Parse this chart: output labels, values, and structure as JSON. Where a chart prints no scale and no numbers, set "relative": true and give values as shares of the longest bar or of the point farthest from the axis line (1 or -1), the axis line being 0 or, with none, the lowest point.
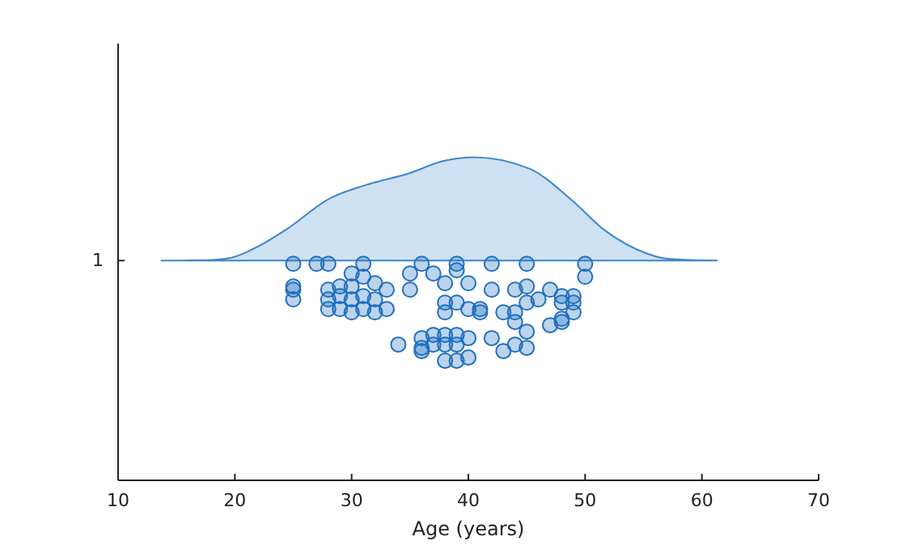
{
  "chart_data": {
    "type": "scatter",
    "xlabel": "Age (years)",
    "xlim": [
      10,
      70
    ],
    "xticks": [
      10,
      20,
      30,
      40,
      50,
      60,
      70
    ],
    "relative": true,
    "annotations": [
      "1"
    ],
    "series": [
      {
        "type": "area",
        "color": "#3c86cc",
        "x": [
          13.7,
          15.1,
          17.4,
          19.7,
          22.1,
          24.4,
          28.1,
          31.3,
          35.0,
          37.8,
          40.5,
          45.2,
          48.8,
          51.6,
          54.4,
          57.2,
          61.3
        ],
        "values": [
          0.68,
          0.68,
          0.681,
          0.689,
          0.726,
          0.776,
          0.872,
          0.915,
          0.951,
          0.988,
          1.0,
          0.965,
          0.869,
          0.776,
          0.715,
          0.685,
          0.68
        ]
      },
      {
        "color": "#1f6fc0",
        "marker": "circle",
        "x": [
          25,
          25,
          25,
          25,
          27,
          28,
          28,
          28,
          28,
          29,
          29,
          29,
          30,
          30,
          30,
          30,
          31,
          31,
          31,
          31,
          32,
          32,
          32,
          33,
          33,
          34,
          35,
          35,
          36,
          36,
          36,
          36,
          37,
          37,
          37,
          38,
          38,
          38,
          38,
          38,
          38,
          39,
          39,
          39,
          39,
          39,
          39,
          40,
          40,
          40,
          40,
          41,
          41,
          42,
          42,
          42,
          43,
          43,
          44,
          44,
          44,
          44,
          45,
          45,
          45,
          45,
          45,
          46,
          47,
          47,
          48,
          48,
          48,
          48,
          49,
          49,
          49,
          50,
          50
        ],
        "values": [
          0.67,
          0.6,
          0.59,
          0.56,
          0.67,
          0.67,
          0.59,
          0.56,
          0.53,
          0.6,
          0.57,
          0.53,
          0.64,
          0.6,
          0.56,
          0.52,
          0.67,
          0.63,
          0.57,
          0.53,
          0.61,
          0.56,
          0.52,
          0.59,
          0.53,
          0.42,
          0.64,
          0.59,
          0.67,
          0.44,
          0.41,
          0.4,
          0.64,
          0.45,
          0.42,
          0.61,
          0.55,
          0.45,
          0.42,
          0.37,
          0.52,
          0.67,
          0.65,
          0.55,
          0.45,
          0.42,
          0.37,
          0.61,
          0.53,
          0.44,
          0.38,
          0.53,
          0.52,
          0.67,
          0.59,
          0.44,
          0.52,
          0.4,
          0.59,
          0.52,
          0.49,
          0.42,
          0.67,
          0.6,
          0.55,
          0.46,
          0.41,
          0.56,
          0.59,
          0.48,
          0.57,
          0.55,
          0.5,
          0.49,
          0.57,
          0.55,
          0.52,
          0.67,
          0.63
        ]
      }
    ]
  }
}
